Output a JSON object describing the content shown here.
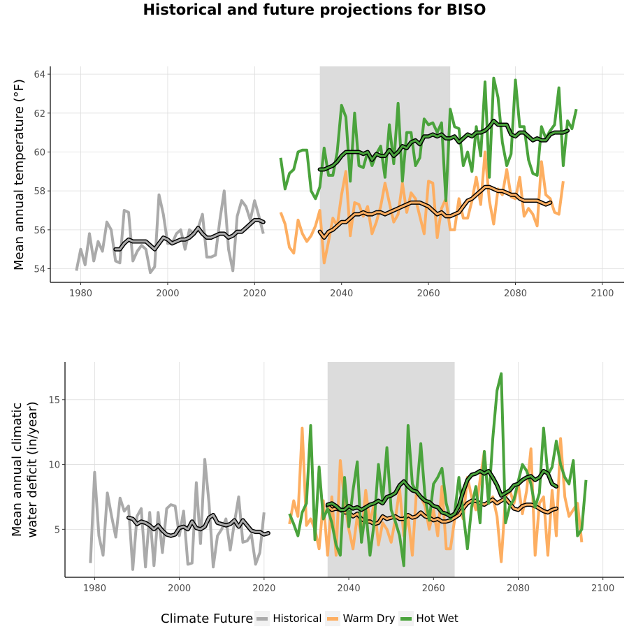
{
  "title": "Historical and future projections for BISO",
  "colors": {
    "Historical": "#aaaaaa",
    "Warm Dry": "#fdae61",
    "Hot Wet": "#4aa33c"
  },
  "legend": {
    "title": "Climate Future",
    "items": [
      "Historical",
      "Warm Dry",
      "Hot Wet"
    ]
  },
  "chart_data": [
    {
      "type": "line",
      "ylabel": "Mean annual temperature (°F)",
      "xlim": [
        1973,
        2105
      ],
      "ylim": [
        53.3,
        64.4
      ],
      "xticks": [
        1980,
        2000,
        2020,
        2040,
        2060,
        2080,
        2100
      ],
      "yticks": [
        54,
        56,
        58,
        60,
        62,
        64
      ],
      "shaded_period": [
        2035,
        2065
      ],
      "series": [
        {
          "name": "Historical",
          "start_year": 1979,
          "values": [
            53.9,
            55.0,
            54.2,
            55.8,
            54.4,
            55.4,
            54.9,
            56.4,
            56.0,
            54.4,
            54.3,
            57.0,
            56.9,
            54.4,
            54.9,
            55.2,
            55.0,
            53.8,
            54.1,
            57.8,
            56.8,
            55.3,
            55.3,
            55.8,
            56.0,
            55.0,
            56.0,
            55.8,
            56.1,
            56.8,
            54.6,
            54.6,
            54.7,
            56.5,
            58.0,
            55.0,
            53.9,
            56.7,
            57.5,
            57.2,
            56.5,
            57.5,
            56.7,
            55.8
          ]
        },
        {
          "name": "Historical (smoothed)",
          "start_year": 1988,
          "values": [
            55.0,
            55.0,
            55.3,
            55.5,
            55.4,
            55.4,
            55.4,
            55.4,
            55.2,
            55.0,
            55.3,
            55.6,
            55.5,
            55.3,
            55.4,
            55.5,
            55.5,
            55.6,
            55.8,
            56.1,
            55.8,
            55.6,
            55.6,
            55.7,
            55.8,
            55.8,
            55.6,
            55.7,
            55.9,
            55.9,
            56.1,
            56.3,
            56.5,
            56.5,
            56.4
          ]
        },
        {
          "name": "Warm Dry",
          "start_year": 2026,
          "values": [
            56.9,
            56.3,
            55.1,
            54.8,
            56.5,
            55.8,
            55.4,
            55.7,
            56.2,
            57.0,
            54.3,
            55.4,
            56.6,
            56.2,
            57.8,
            59.0,
            55.7,
            57.4,
            57.3,
            56.7,
            57.2,
            55.8,
            56.4,
            57.2,
            58.4,
            57.4,
            56.4,
            56.8,
            58.4,
            56.9,
            57.9,
            57.6,
            56.7,
            55.8,
            58.5,
            58.4,
            55.6,
            57.1,
            57.6,
            56.0,
            56.0,
            57.6,
            56.6,
            56.6,
            57.5,
            58.7,
            57.3,
            60.0,
            57.5,
            56.3,
            58.1,
            57.8,
            59.1,
            57.7,
            57.6,
            58.7,
            56.7,
            57.1,
            56.8,
            56.2,
            59.5,
            57.8,
            57.6,
            56.9,
            56.8,
            58.5
          ]
        },
        {
          "name": "Warm Dry (smoothed)",
          "start_year": 2035,
          "values": [
            55.9,
            55.6,
            55.9,
            56.0,
            56.2,
            56.4,
            56.4,
            56.6,
            56.8,
            56.8,
            56.9,
            56.8,
            56.8,
            56.9,
            56.9,
            56.8,
            56.9,
            57.0,
            57.1,
            57.2,
            57.3,
            57.4,
            57.4,
            57.4,
            57.3,
            57.2,
            57.0,
            56.8,
            56.9,
            56.7,
            56.7,
            56.8,
            56.9,
            57.2,
            57.5,
            57.6,
            57.8,
            58.0,
            58.2,
            58.2,
            58.1,
            58.0,
            58.0,
            57.9,
            57.8,
            57.8,
            57.6,
            57.5,
            57.5,
            57.5,
            57.5,
            57.4,
            57.3,
            57.4
          ]
        },
        {
          "name": "Hot Wet",
          "start_year": 2026,
          "values": [
            59.7,
            58.1,
            58.9,
            59.1,
            60.0,
            60.1,
            60.1,
            58.0,
            57.6,
            58.2,
            60.2,
            58.8,
            58.8,
            60.0,
            62.4,
            61.8,
            58.5,
            62.0,
            59.3,
            59.2,
            60.0,
            59.3,
            59.9,
            60.3,
            58.7,
            61.4,
            59.4,
            62.5,
            58.5,
            61.0,
            61.0,
            59.3,
            59.7,
            61.7,
            61.4,
            61.5,
            61.0,
            61.5,
            57.5,
            62.2,
            61.3,
            61.2,
            59.3,
            60.0,
            59.0,
            61.3,
            59.8,
            63.6,
            58.7,
            63.8,
            62.8,
            60.5,
            59.3,
            59.9,
            63.7,
            61.3,
            61.3,
            59.6,
            58.9,
            58.8,
            61.3,
            60.7,
            61.1,
            61.4,
            63.3,
            59.3,
            61.6,
            61.2,
            62.2
          ]
        },
        {
          "name": "Hot Wet (smoothed)",
          "start_year": 2035,
          "values": [
            59.1,
            59.1,
            59.2,
            59.3,
            59.5,
            59.8,
            60.0,
            60.0,
            60.0,
            60.0,
            59.9,
            60.0,
            59.6,
            59.9,
            59.8,
            59.8,
            60.1,
            59.8,
            60.0,
            60.3,
            60.2,
            60.5,
            60.6,
            60.4,
            60.8,
            60.8,
            60.9,
            60.8,
            60.9,
            60.7,
            60.7,
            60.8,
            60.5,
            60.7,
            60.9,
            60.8,
            61.0,
            61.0,
            61.1,
            61.3,
            61.6,
            61.4,
            61.4,
            61.4,
            60.9,
            60.8,
            61.0,
            61.0,
            60.8,
            60.6,
            60.7,
            60.6,
            60.6,
            60.9,
            61.0,
            61.0,
            61.0,
            61.1
          ]
        }
      ]
    },
    {
      "type": "line",
      "ylabel": "Mean annual climatic water deficit (in/year)",
      "ylabel_lines": [
        "Mean annual climatic",
        "water deficit (in/year)"
      ],
      "xlim": [
        1973,
        2105
      ],
      "ylim": [
        1.3,
        17.9
      ],
      "xticks": [
        1980,
        2000,
        2020,
        2040,
        2060,
        2080,
        2100
      ],
      "yticks": [
        5,
        10,
        15
      ],
      "shaded_period": [
        2035,
        2065
      ],
      "series": [
        {
          "name": "Historical",
          "start_year": 1979,
          "values": [
            2.4,
            9.4,
            4.5,
            3.0,
            7.8,
            6.0,
            4.4,
            7.4,
            6.4,
            6.8,
            1.9,
            6.0,
            6.6,
            2.1,
            6.3,
            2.2,
            6.3,
            3.2,
            6.6,
            6.9,
            6.8,
            4.5,
            6.4,
            2.3,
            2.4,
            8.6,
            3.9,
            10.4,
            7.0,
            2.1,
            4.5,
            5.0,
            5.8,
            3.4,
            5.5,
            7.5,
            4.0,
            4.1,
            4.6,
            2.3,
            3.2,
            6.3
          ]
        },
        {
          "name": "Historical (smoothed)",
          "start_year": 1988,
          "values": [
            5.9,
            5.8,
            5.4,
            5.6,
            5.5,
            5.3,
            5.0,
            5.3,
            4.9,
            4.6,
            4.5,
            4.6,
            5.1,
            5.2,
            5.0,
            5.6,
            5.1,
            5.0,
            5.2,
            5.9,
            6.1,
            5.5,
            5.4,
            5.3,
            5.4,
            5.7,
            5.2,
            5.7,
            5.3,
            4.9,
            4.8,
            4.8,
            4.6,
            4.7
          ]
        },
        {
          "name": "Warm Dry",
          "start_year": 2026,
          "values": [
            5.4,
            7.2,
            6.0,
            12.8,
            5.3,
            5.8,
            5.0,
            3.5,
            7.2,
            3.0,
            7.5,
            3.0,
            10.3,
            7.2,
            5.0,
            3.5,
            6.0,
            4.5,
            8.0,
            5.5,
            7.0,
            3.8,
            5.5,
            5.0,
            4.0,
            5.8,
            8.1,
            4.5,
            6.0,
            3.0,
            8.0,
            7.5,
            6.8,
            5.0,
            6.5,
            4.5,
            8.3,
            3.5,
            3.5,
            5.8,
            7.0,
            5.8,
            9.0,
            7.5,
            6.5,
            8.8,
            11.0,
            7.0,
            7.5,
            6.0,
            2.5,
            7.5,
            8.0,
            7.0,
            8.5,
            6.2,
            8.0,
            11.2,
            3.0,
            7.0,
            7.5,
            3.0,
            8.0,
            4.5,
            12.0,
            7.5,
            6.0,
            6.5,
            7.0,
            4.0
          ]
        },
        {
          "name": "Warm Dry (smoothed)",
          "start_year": 2035,
          "values": [
            6.8,
            6.5,
            6.6,
            6.5,
            6.3,
            6.3,
            6.0,
            6.2,
            5.8,
            5.6,
            5.6,
            5.4,
            5.5,
            6.0,
            5.8,
            5.9,
            6.0,
            5.8,
            5.8,
            6.1,
            5.9,
            6.0,
            6.3,
            6.0,
            5.9,
            5.7,
            5.8,
            5.6,
            5.6,
            5.7,
            5.9,
            6.1,
            6.6,
            7.0,
            7.2,
            7.2,
            7.0,
            6.9,
            7.1,
            7.3,
            7.0,
            7.2,
            7.4,
            7.0,
            6.6,
            6.5,
            6.8,
            6.9,
            6.9,
            6.8,
            6.6,
            6.4,
            6.3,
            6.5,
            6.6
          ]
        },
        {
          "name": "Hot Wet",
          "start_year": 2026,
          "values": [
            6.2,
            5.4,
            4.5,
            6.3,
            7.0,
            13.0,
            4.2,
            9.8,
            5.8,
            6.6,
            5.5,
            3.8,
            3.0,
            9.0,
            5.2,
            8.0,
            10.2,
            4.0,
            6.5,
            3.0,
            5.5,
            10.0,
            7.2,
            11.3,
            6.5,
            5.6,
            4.5,
            2.2,
            13.0,
            8.5,
            7.8,
            11.6,
            7.5,
            5.7,
            8.5,
            9.0,
            9.7,
            7.0,
            5.8,
            6.3,
            9.0,
            6.3,
            3.5,
            6.7,
            8.3,
            5.5,
            11.0,
            7.0,
            12.0,
            15.7,
            17.0,
            5.5,
            6.8,
            7.3,
            8.7,
            10.0,
            9.5,
            8.5,
            6.7,
            7.8,
            12.8,
            9.2,
            9.8,
            11.8,
            10.0,
            9.0,
            8.5,
            10.3,
            4.5,
            5.0,
            8.8
          ]
        },
        {
          "name": "Hot Wet (smoothed)",
          "start_year": 2035,
          "values": [
            6.9,
            7.0,
            6.8,
            6.5,
            6.5,
            6.8,
            6.6,
            6.7,
            6.5,
            6.7,
            6.9,
            7.0,
            7.2,
            7.0,
            7.5,
            7.6,
            7.8,
            8.4,
            8.7,
            8.3,
            8.0,
            7.9,
            7.5,
            7.2,
            7.1,
            6.8,
            6.7,
            6.3,
            6.2,
            6.0,
            6.2,
            6.8,
            7.9,
            8.8,
            9.2,
            9.3,
            9.5,
            9.3,
            9.5,
            9.0,
            8.4,
            7.6,
            7.8,
            8.0,
            8.4,
            8.5,
            8.8,
            9.0,
            9.1,
            8.8,
            9.0,
            9.5,
            9.3,
            8.5,
            8.3
          ]
        }
      ]
    }
  ]
}
